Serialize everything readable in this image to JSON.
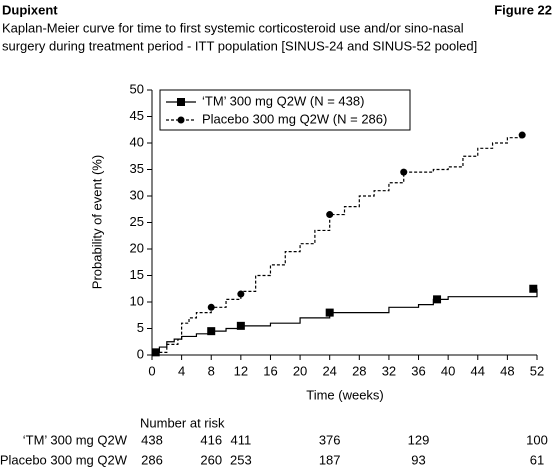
{
  "chart_data": {
    "type": "km",
    "header": "Dupixent",
    "figure_label": "Figure 22",
    "subtitle": [
      "Kaplan-Meier curve for time to first systemic corticosteroid use and/or sino-nasal",
      "surgery during treatment period - ITT population [SINUS-24 and SINUS-52 pooled]"
    ],
    "xlabel": "Time (weeks)",
    "ylabel": "Probability of event (%)",
    "xlim": [
      0,
      52
    ],
    "xticks": [
      0,
      4,
      8,
      12,
      16,
      20,
      24,
      28,
      32,
      36,
      40,
      44,
      48,
      52
    ],
    "ylim": [
      0,
      50
    ],
    "yticks": [
      0,
      5,
      10,
      15,
      20,
      25,
      30,
      35,
      40,
      45,
      50
    ],
    "legend": "upper left",
    "series": [
      {
        "name": "‘TM’ 300 mg Q2W (N = 438)",
        "color": "#000000",
        "dash": "solid",
        "marker": "square",
        "x": [
          0,
          0.5,
          1,
          2,
          3,
          4,
          6,
          8,
          10,
          12,
          16,
          20,
          24,
          32,
          36,
          38,
          40,
          52
        ],
        "values": [
          0,
          0.5,
          1.5,
          2.5,
          3,
          3.5,
          4,
          4.5,
          5,
          5.5,
          6,
          7,
          8,
          9,
          9.5,
          10.5,
          11,
          12.5
        ],
        "marker_x": [
          0.5,
          8,
          12,
          24,
          38.5,
          51.5
        ],
        "marker_values": [
          0.5,
          4.5,
          5.5,
          8,
          10.5,
          12.5
        ]
      },
      {
        "name": "Placebo 300 mg Q2W (N = 286)",
        "color": "#000000",
        "dash": "dashed",
        "marker": "circle",
        "x": [
          0,
          0.5,
          2,
          3.5,
          4,
          5,
          6,
          8,
          10,
          12,
          14,
          16,
          18,
          20,
          22,
          24,
          26,
          28,
          30,
          32,
          34,
          38,
          40,
          42,
          44,
          46,
          48,
          50
        ],
        "values": [
          0,
          0.5,
          2,
          3,
          6,
          7,
          8,
          9,
          10.5,
          12,
          15,
          17,
          19.5,
          21,
          23.5,
          26.5,
          28,
          30,
          31,
          32.5,
          34.5,
          35,
          35.5,
          37.5,
          39,
          40,
          41,
          41.5
        ],
        "marker_x": [
          8,
          12,
          24,
          34,
          50
        ],
        "marker_values": [
          9,
          11.5,
          26.5,
          34.5,
          41.5
        ]
      }
    ],
    "risk_table": {
      "title": "Number at risk",
      "weeks": [
        0,
        8,
        12,
        24,
        36,
        52
      ],
      "rows": [
        {
          "label": "‘TM’ 300 mg Q2W",
          "values": [
            438,
            416,
            411,
            376,
            129,
            100
          ]
        },
        {
          "label": "Placebo 300 mg Q2W",
          "values": [
            286,
            260,
            253,
            187,
            93,
            61
          ]
        }
      ]
    }
  }
}
